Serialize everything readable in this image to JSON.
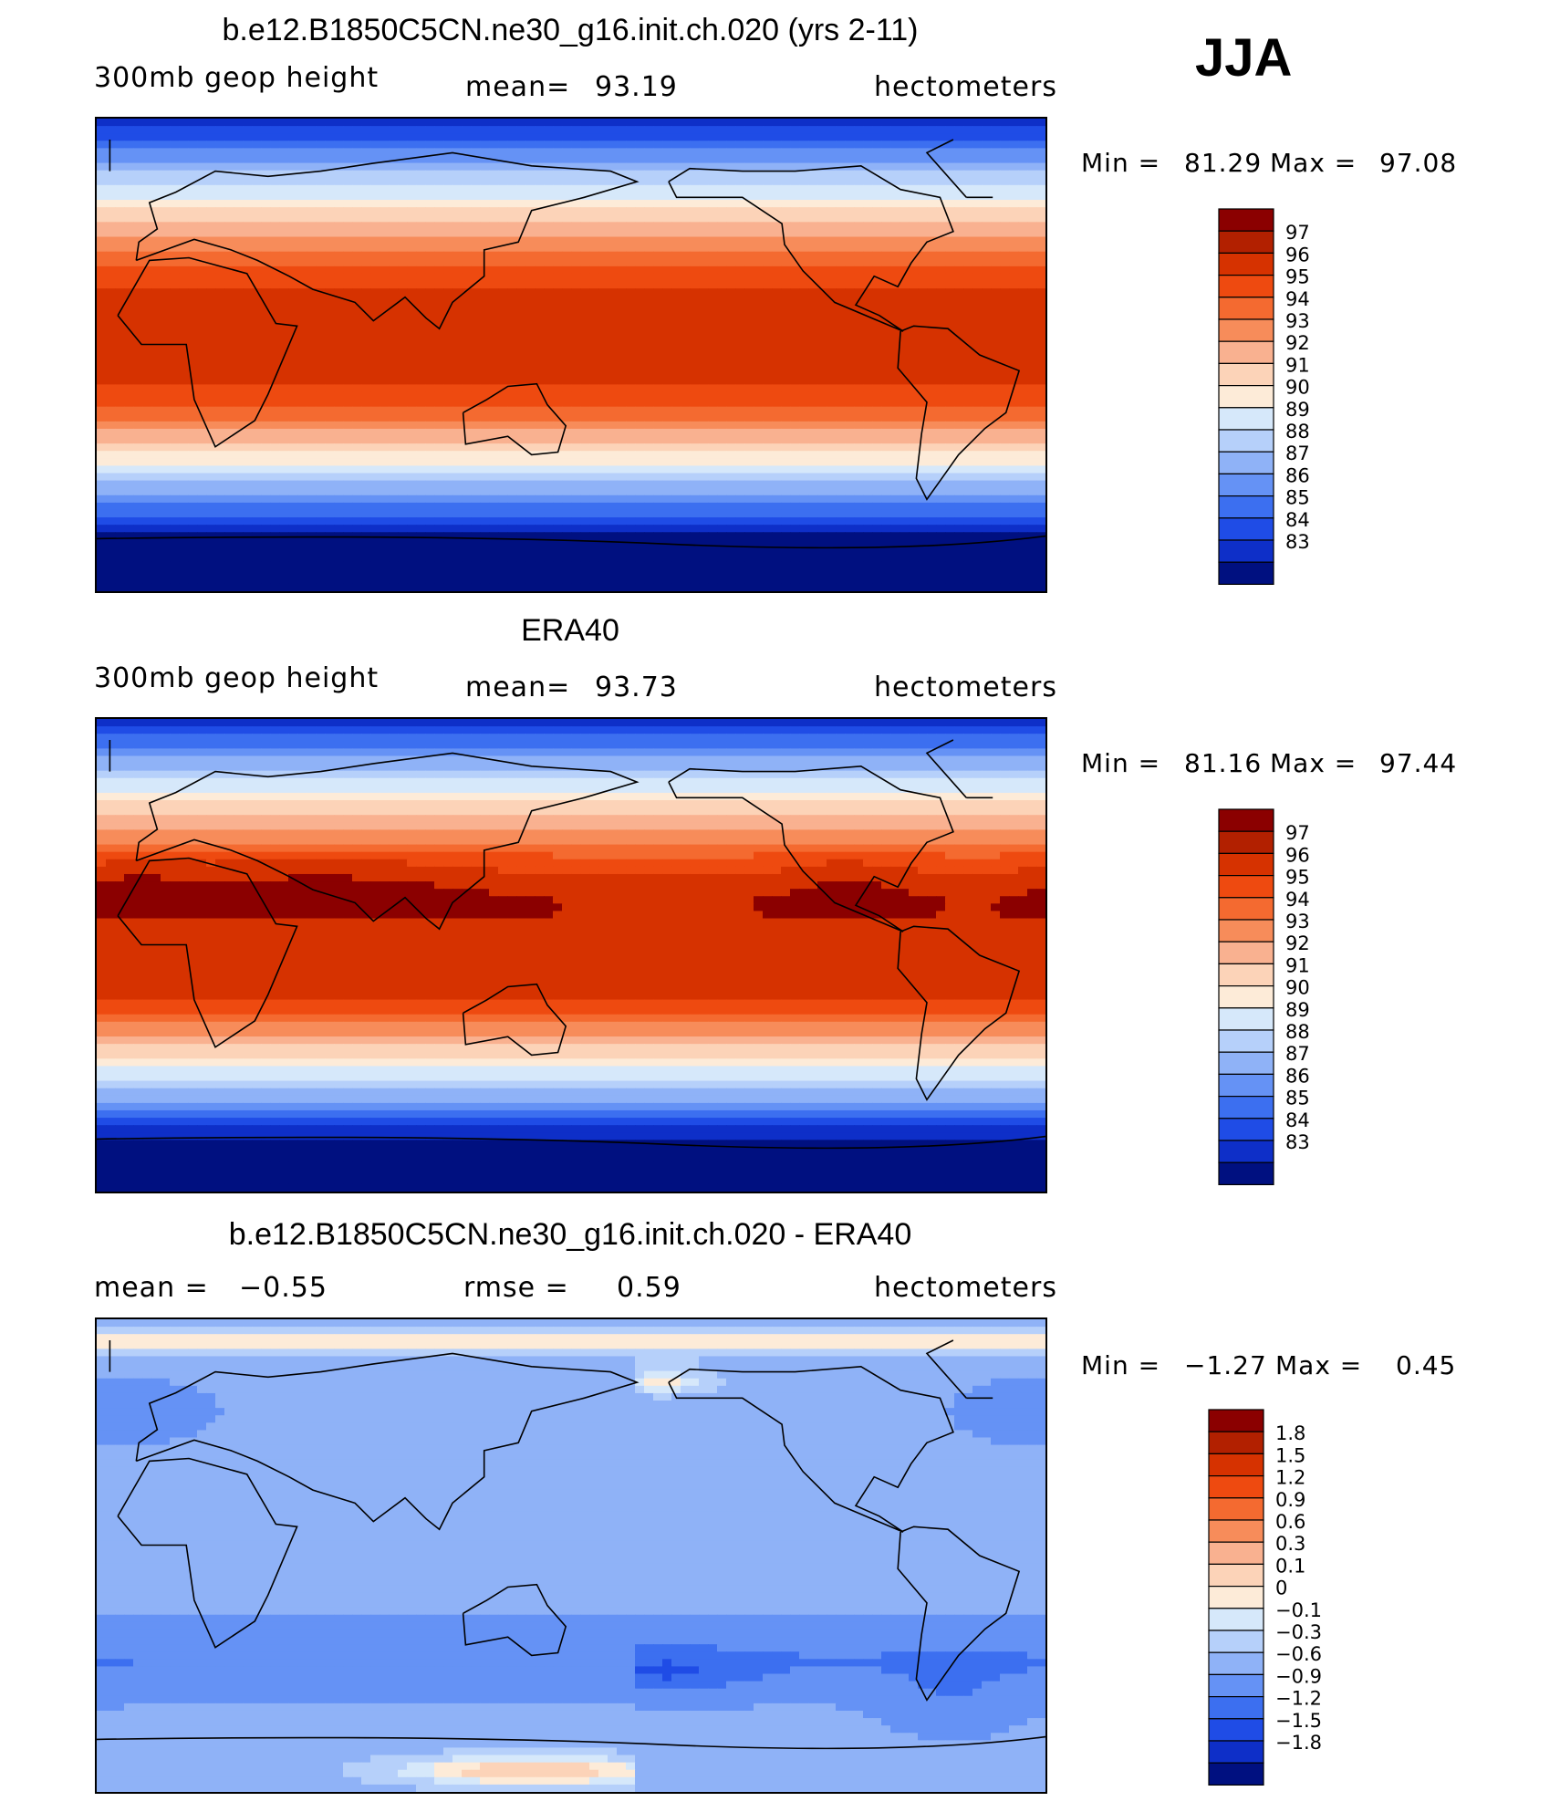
{
  "season": "JJA",
  "chart_data": [
    {
      "type": "heatmap",
      "title": "b.e12.B1850C5CN.ne30_g16.init.ch.020 (yrs 2-11)",
      "left_label": "300mb geop height",
      "stat_label": "mean=",
      "stat_value": "93.19",
      "units": "hectometers",
      "min_label": "Min =",
      "min_value": "81.29",
      "max_label": "Max =",
      "max_value": "97.08",
      "levels": [
        "97",
        "96",
        "95",
        "94",
        "93",
        "92",
        "91",
        "90",
        "89",
        "88",
        "87",
        "86",
        "85",
        "84",
        "83"
      ],
      "colors": [
        "#8b0000",
        "#b22000",
        "#d63200",
        "#ee4a10",
        "#f46a30",
        "#f78c5a",
        "#f9b190",
        "#fcd3b8",
        "#fdebd8",
        "#d6e8fa",
        "#b6d0fa",
        "#8fb2f7",
        "#6592f5",
        "#3c6ff0",
        "#1f4ce6",
        "#0e2fc8",
        "#001080"
      ],
      "field": "model"
    },
    {
      "type": "heatmap",
      "title": "ERA40",
      "left_label": "300mb geop height",
      "stat_label": "mean=",
      "stat_value": "93.73",
      "units": "hectometers",
      "min_label": "Min =",
      "min_value": "81.16",
      "max_label": "Max =",
      "max_value": "97.44",
      "levels": [
        "97",
        "96",
        "95",
        "94",
        "93",
        "92",
        "91",
        "90",
        "89",
        "88",
        "87",
        "86",
        "85",
        "84",
        "83"
      ],
      "colors": [
        "#8b0000",
        "#b22000",
        "#d63200",
        "#ee4a10",
        "#f46a30",
        "#f78c5a",
        "#f9b190",
        "#fcd3b8",
        "#fdebd8",
        "#d6e8fa",
        "#b6d0fa",
        "#8fb2f7",
        "#6592f5",
        "#3c6ff0",
        "#1f4ce6",
        "#0e2fc8",
        "#001080"
      ],
      "field": "obs"
    },
    {
      "type": "heatmap",
      "title": "b.e12.B1850C5CN.ne30_g16.init.ch.020 - ERA40",
      "left_label": "mean =",
      "left_value": "−0.55",
      "stat_label": "rmse =",
      "stat_value": "0.59",
      "units": "hectometers",
      "min_label": "Min =",
      "min_value": "−1.27",
      "max_label": "Max =",
      "max_value": "0.45",
      "levels": [
        "1.8",
        "1.5",
        "1.2",
        "0.9",
        "0.6",
        "0.3",
        "0.1",
        "0",
        "−0.1",
        "−0.3",
        "−0.6",
        "−0.9",
        "−1.2",
        "−1.5",
        "−1.8"
      ],
      "colors": [
        "#8b0000",
        "#b22000",
        "#d63200",
        "#ee4a10",
        "#f46a30",
        "#f78c5a",
        "#f9b190",
        "#fcd3b8",
        "#fdebd8",
        "#d6e8fa",
        "#b6d0fa",
        "#8fb2f7",
        "#6592f5",
        "#3c6ff0",
        "#1f4ce6",
        "#0e2fc8",
        "#001080"
      ],
      "field": "diff"
    }
  ]
}
